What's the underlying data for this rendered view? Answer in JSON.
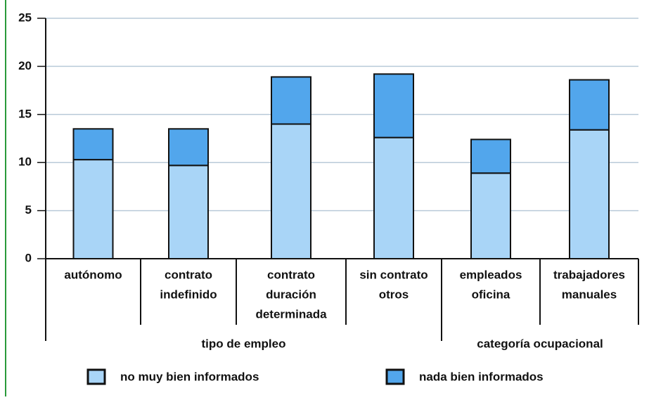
{
  "chart_data": {
    "type": "stacked_bar",
    "categories": [
      [
        "autónomo"
      ],
      [
        "contrato",
        "indefinido"
      ],
      [
        "contrato",
        "duración",
        "determinada"
      ],
      [
        "sin contrato",
        "otros"
      ],
      [
        "empleados",
        "oficina"
      ],
      [
        "trabajadores",
        "manuales"
      ]
    ],
    "groups": [
      {
        "label": "tipo de empleo",
        "span": [
          0,
          3
        ]
      },
      {
        "label": "categoría ocupacional",
        "span": [
          4,
          5
        ]
      }
    ],
    "series": [
      {
        "name": "no muy bien informados",
        "color": "#a9d5f7",
        "values": [
          10.3,
          9.7,
          14.0,
          12.6,
          8.9,
          13.4
        ]
      },
      {
        "name": "nada bien informados",
        "color": "#52a6ec",
        "values": [
          3.2,
          3.8,
          4.9,
          6.6,
          3.5,
          5.2
        ]
      }
    ],
    "ylim": [
      0,
      25
    ],
    "yticks": [
      0,
      5,
      10,
      15,
      20,
      25
    ],
    "grid": true,
    "legend": "bottom"
  }
}
